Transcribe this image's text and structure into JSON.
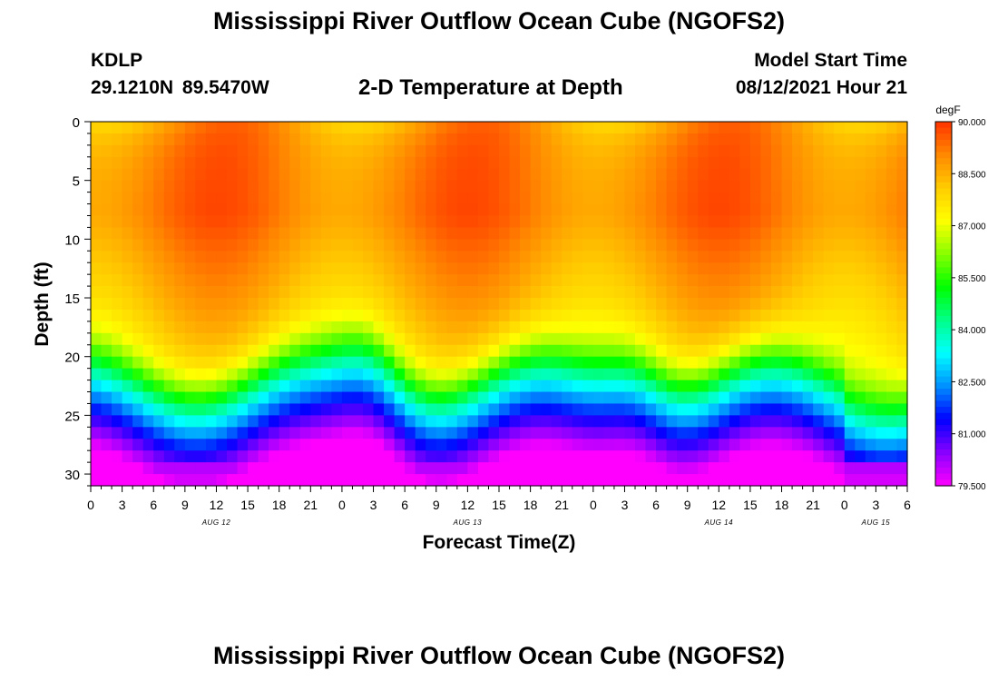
{
  "header": {
    "title": "Mississippi River Outflow Ocean Cube (NGOFS2)",
    "station": "KDLP",
    "coordinates": "29.1210N  89.5470W",
    "subtitle": "2-D Temperature at Depth",
    "model_start_label": "Model Start Time",
    "model_start_value": "08/12/2021 Hour 21"
  },
  "footer": {
    "title": "Mississippi River Outflow Ocean Cube (NGOFS2)"
  },
  "chart_data": {
    "type": "heatmap",
    "title": "2-D Temperature at Depth",
    "xlabel": "Forecast Time(Z)",
    "ylabel": "Depth (ft)",
    "x_tick_labels": [
      "0",
      "3",
      "6",
      "9",
      "12",
      "15",
      "18",
      "21",
      "0",
      "3",
      "6",
      "9",
      "12",
      "15",
      "18",
      "21",
      "0",
      "3",
      "6",
      "9",
      "12",
      "15",
      "18",
      "21",
      "0",
      "3",
      "6"
    ],
    "x_range_hours": [
      0,
      78
    ],
    "date_labels": [
      {
        "hour": 12,
        "label": "AUG 12"
      },
      {
        "hour": 36,
        "label": "AUG 13"
      },
      {
        "hour": 60,
        "label": "AUG 14"
      },
      {
        "hour": 75,
        "label": "AUG 15"
      }
    ],
    "y_ticks": [
      0,
      5,
      10,
      15,
      20,
      25,
      30
    ],
    "ylim": [
      0,
      31
    ],
    "y_inverted": true,
    "colorbar": {
      "unit": "degF",
      "min": 79.5,
      "max": 90.0,
      "tick_labels": [
        "90.000",
        "88.500",
        "87.000",
        "85.500",
        "84.000",
        "82.500",
        "81.000",
        "79.500"
      ],
      "colors": [
        "#ff00ff",
        "#8800ff",
        "#0000ff",
        "#0090ff",
        "#00ffff",
        "#00ff88",
        "#00ff00",
        "#88ff00",
        "#ffff00",
        "#ffcc00",
        "#ff8800",
        "#ff3300"
      ]
    },
    "description": "Warm near-surface layer (~89-90 degF at 5-10 ft), cooling with depth to ~79.5 degF at 31 ft"
  }
}
